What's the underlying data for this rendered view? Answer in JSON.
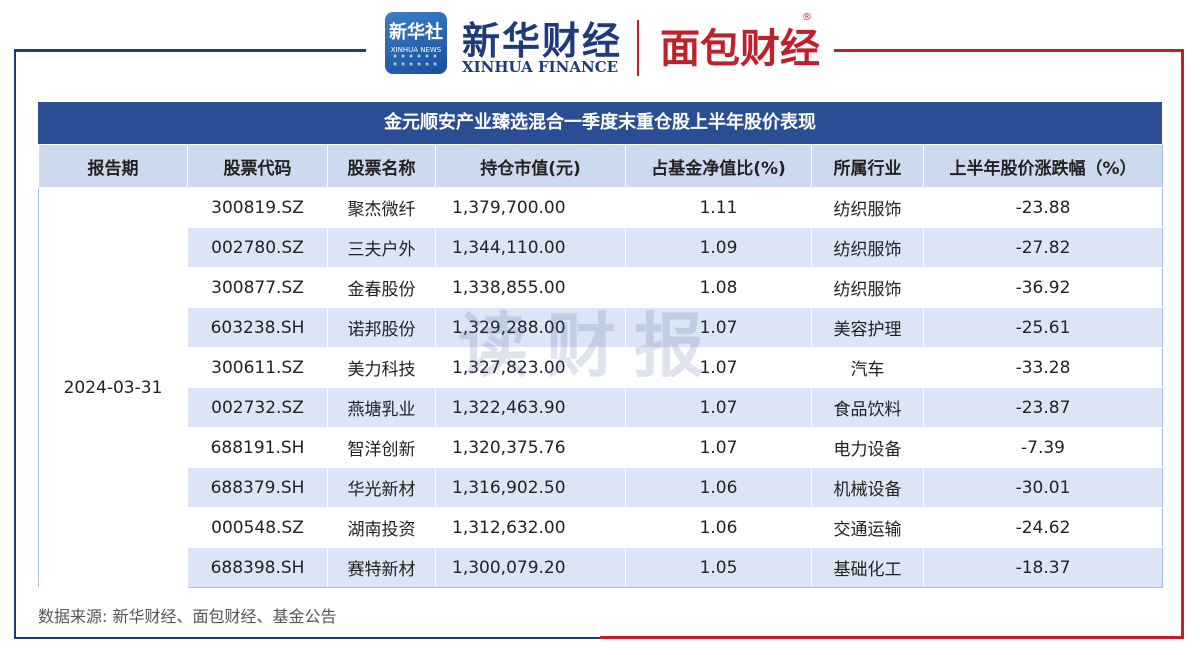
{
  "header": {
    "xinhua_box_big": "新华社",
    "xinhua_box_small": "XINHUA NEWS",
    "xinhua_title": "新华财经",
    "xinhua_sub": "XINHUA FINANCE",
    "mianbao_title": "面包财经",
    "mianbao_reg": "®"
  },
  "table": {
    "title": "金元顺安产业臻选混合一季度末重仓股上半年股价表现",
    "columns": [
      "报告期",
      "股票代码",
      "股票名称",
      "持仓市值(元)",
      "占基金净值比(%)",
      "所属行业",
      "上半年股价涨跌幅（%）"
    ],
    "report_date": "2024-03-31",
    "rows": [
      {
        "code": "300819.SZ",
        "name": "聚杰微纤",
        "value": "1,379,700.00",
        "pct": "1.11",
        "industry": "纺织服饰",
        "change": "-23.88"
      },
      {
        "code": "002780.SZ",
        "name": "三夫户外",
        "value": "1,344,110.00",
        "pct": "1.09",
        "industry": "纺织服饰",
        "change": "-27.82"
      },
      {
        "code": "300877.SZ",
        "name": "金春股份",
        "value": "1,338,855.00",
        "pct": "1.08",
        "industry": "纺织服饰",
        "change": "-36.92"
      },
      {
        "code": "603238.SH",
        "name": "诺邦股份",
        "value": "1,329,288.00",
        "pct": "1.07",
        "industry": "美容护理",
        "change": "-25.61"
      },
      {
        "code": "300611.SZ",
        "name": "美力科技",
        "value": "1,327,823.00",
        "pct": "1.07",
        "industry": "汽车",
        "change": "-33.28"
      },
      {
        "code": "002732.SZ",
        "name": "燕塘乳业",
        "value": "1,322,463.90",
        "pct": "1.07",
        "industry": "食品饮料",
        "change": "-23.87"
      },
      {
        "code": "688191.SH",
        "name": "智洋创新",
        "value": "1,320,375.76",
        "pct": "1.07",
        "industry": "电力设备",
        "change": "-7.39"
      },
      {
        "code": "688379.SH",
        "name": "华光新材",
        "value": "1,316,902.50",
        "pct": "1.06",
        "industry": "机械设备",
        "change": "-30.01"
      },
      {
        "code": "000548.SZ",
        "name": "湖南投资",
        "value": "1,312,632.00",
        "pct": "1.06",
        "industry": "交通运输",
        "change": "-24.62"
      },
      {
        "code": "688398.SH",
        "name": "赛特新材",
        "value": "1,300,079.20",
        "pct": "1.05",
        "industry": "基础化工",
        "change": "-18.37"
      }
    ]
  },
  "watermark": "读财报",
  "source": "数据来源: 新华财经、面包财经、基金公告"
}
